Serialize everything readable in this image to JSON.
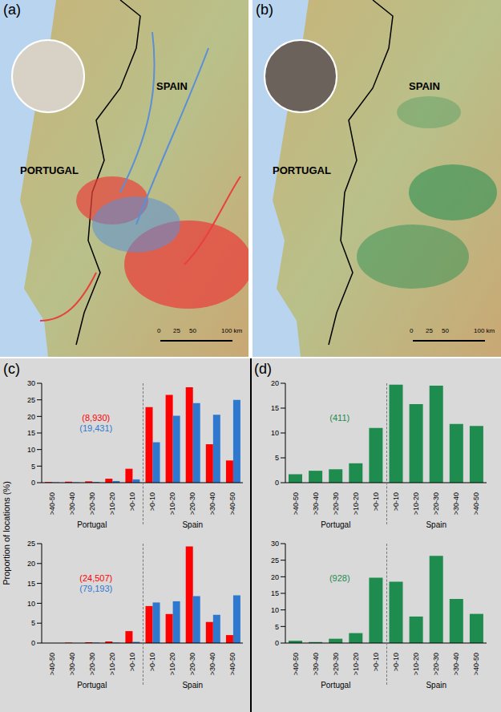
{
  "figure": {
    "y_label": "Proportion of locations (%)",
    "panels": [
      {
        "label": "(c)"
      },
      {
        "label": "(d)"
      }
    ]
  },
  "maps": [
    {
      "label": "(a)",
      "country_labels": [
        "SPAIN",
        "PORTUGAL"
      ],
      "scale_labels": [
        "0",
        "25",
        "50",
        "100 km"
      ],
      "colors": [
        "#e8413c",
        "#5b8fd6"
      ]
    },
    {
      "label": "(b)",
      "country_labels": [
        "SPAIN",
        "PORTUGAL"
      ],
      "scale_labels": [
        "0",
        "25",
        "50",
        "100 km"
      ],
      "colors": [
        "#1e8c4e"
      ]
    }
  ],
  "chart_data": [
    {
      "type": "bar",
      "categories": [
        ">40-50",
        ">30-40",
        ">20-30",
        ">10-20",
        ">0-10",
        ">0-10",
        ">10-20",
        ">20-30",
        ">30-40",
        ">40-50"
      ],
      "group_labels": [
        "Portugal",
        "Spain"
      ],
      "ylim": [
        0,
        30
      ],
      "yticks": [
        0,
        5,
        10,
        15,
        20,
        25,
        30
      ],
      "series": [
        {
          "name": "(8,930)",
          "color": "#ff0000",
          "values": [
            0.2,
            0.3,
            0.4,
            1.2,
            4.2,
            22.8,
            26.5,
            28.8,
            11.6,
            6.7
          ]
        },
        {
          "name": "(19,431)",
          "color": "#2f78d0",
          "values": [
            0.1,
            0.1,
            0.2,
            0.5,
            1.0,
            12.2,
            20.2,
            24.0,
            20.5,
            25.0
          ]
        }
      ]
    },
    {
      "type": "bar",
      "categories": [
        ">40-50",
        ">30-40",
        ">20-30",
        ">10-20",
        ">0-10",
        ">0-10",
        ">10-20",
        ">20-30",
        ">30-40",
        ">40-50"
      ],
      "group_labels": [
        "Portugal",
        "Spain"
      ],
      "ylim": [
        0,
        25
      ],
      "yticks": [
        0,
        5,
        10,
        15,
        20,
        25
      ],
      "series": [
        {
          "name": "(24,507)",
          "color": "#ff0000",
          "values": [
            0,
            0.1,
            0.2,
            0.4,
            3.0,
            9.3,
            7.3,
            24.3,
            5.3,
            2.0
          ]
        },
        {
          "name": "(79,193)",
          "color": "#2f78d0",
          "values": [
            0,
            0,
            0.1,
            0.1,
            0.3,
            10.2,
            10.5,
            11.8,
            7.1,
            12.0
          ]
        }
      ]
    },
    {
      "type": "bar",
      "categories": [
        ">40-50",
        ">30-40",
        ">20-30",
        ">10-20",
        ">0-10",
        ">0-10",
        ">10-20",
        ">20-30",
        ">30-40",
        ">40-50"
      ],
      "group_labels": [
        "Portugal",
        "Spain"
      ],
      "ylim": [
        0,
        20
      ],
      "yticks": [
        0,
        5,
        10,
        15,
        20
      ],
      "series": [
        {
          "name": "(411)",
          "color": "#1e8c4e",
          "values": [
            1.7,
            2.4,
            2.7,
            3.9,
            11.0,
            19.7,
            15.8,
            19.5,
            11.8,
            11.4
          ]
        }
      ]
    },
    {
      "type": "bar",
      "categories": [
        ">40-50",
        ">30-40",
        ">20-30",
        ">10-20",
        ">0-10",
        ">0-10",
        ">10-20",
        ">20-30",
        ">30-40",
        ">40-50"
      ],
      "group_labels": [
        "Portugal",
        "Spain"
      ],
      "ylim": [
        0,
        30
      ],
      "yticks": [
        0,
        5,
        10,
        15,
        20,
        25,
        30
      ],
      "series": [
        {
          "name": "(928)",
          "color": "#1e8c4e",
          "values": [
            0.7,
            0.3,
            1.3,
            3.0,
            19.7,
            18.5,
            8.0,
            26.3,
            13.3,
            8.8
          ]
        }
      ]
    }
  ]
}
